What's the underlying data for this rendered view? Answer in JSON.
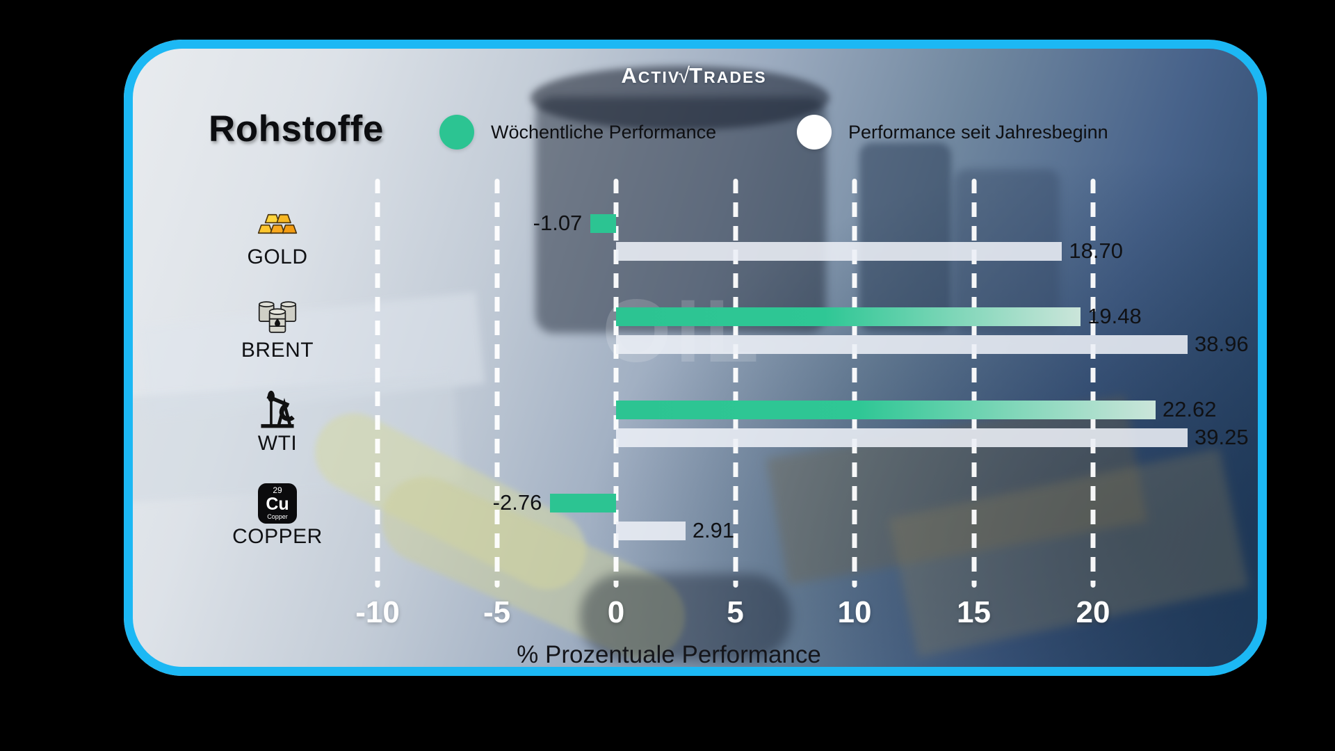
{
  "brand": {
    "logo_segments": {
      "a": "A",
      "ctiv": "CTIV",
      "check": "√",
      "t": "T",
      "rades": "RADES"
    }
  },
  "header": {
    "title": "Rohstoffe"
  },
  "legend": {
    "weekly": {
      "label": "Wöchentliche Performance",
      "color": "#2cc492"
    },
    "ytd": {
      "label": "Performance seit Jahresbeginn",
      "color": "#ffffff"
    }
  },
  "watermark": {
    "text": "OIL"
  },
  "axis": {
    "label": "% Prozentuale Performance",
    "ticks": [
      "-10",
      "-5",
      "0",
      "5",
      "10",
      "15",
      "20"
    ]
  },
  "rows": [
    {
      "category": "GOLD",
      "icon": "gold-bars-icon",
      "weekly_label": "-1.07",
      "ytd_label": "18.70"
    },
    {
      "category": "BRENT",
      "icon": "oil-barrels-icon",
      "weekly_label": "19.48",
      "ytd_label": "38.96"
    },
    {
      "category": "WTI",
      "icon": "oil-pumpjack-icon",
      "weekly_label": "22.62",
      "ytd_label": "39.25"
    },
    {
      "category": "COPPER",
      "icon": "copper-element-icon",
      "weekly_label": "-2.76",
      "ytd_label": "2.91",
      "icon_text": {
        "atomic_number": "29",
        "symbol": "Cu",
        "element": "Copper"
      }
    }
  ],
  "chart_data": {
    "type": "bar",
    "orientation": "horizontal",
    "title": "Rohstoffe",
    "categories": [
      "GOLD",
      "BRENT",
      "WTI",
      "COPPER"
    ],
    "series": [
      {
        "name": "Wöchentliche Performance",
        "color": "#2cc492",
        "values": [
          -1.07,
          19.48,
          22.62,
          -2.76
        ]
      },
      {
        "name": "Performance seit Jahresbeginn",
        "color": "#eceff6",
        "values": [
          18.7,
          38.96,
          39.25,
          2.91
        ]
      }
    ],
    "xlabel": "% Prozentuale Performance",
    "xticks": [
      -10,
      -5,
      0,
      5,
      10,
      15,
      20
    ],
    "xlim": [
      -12.5,
      24
    ],
    "grid": "vertical-dashed-white",
    "legend_position": "top",
    "value_labels": true,
    "note": "Bars longer than the plot area (BRENT 38.96, WTI 39.25) are clipped at the right edge"
  }
}
